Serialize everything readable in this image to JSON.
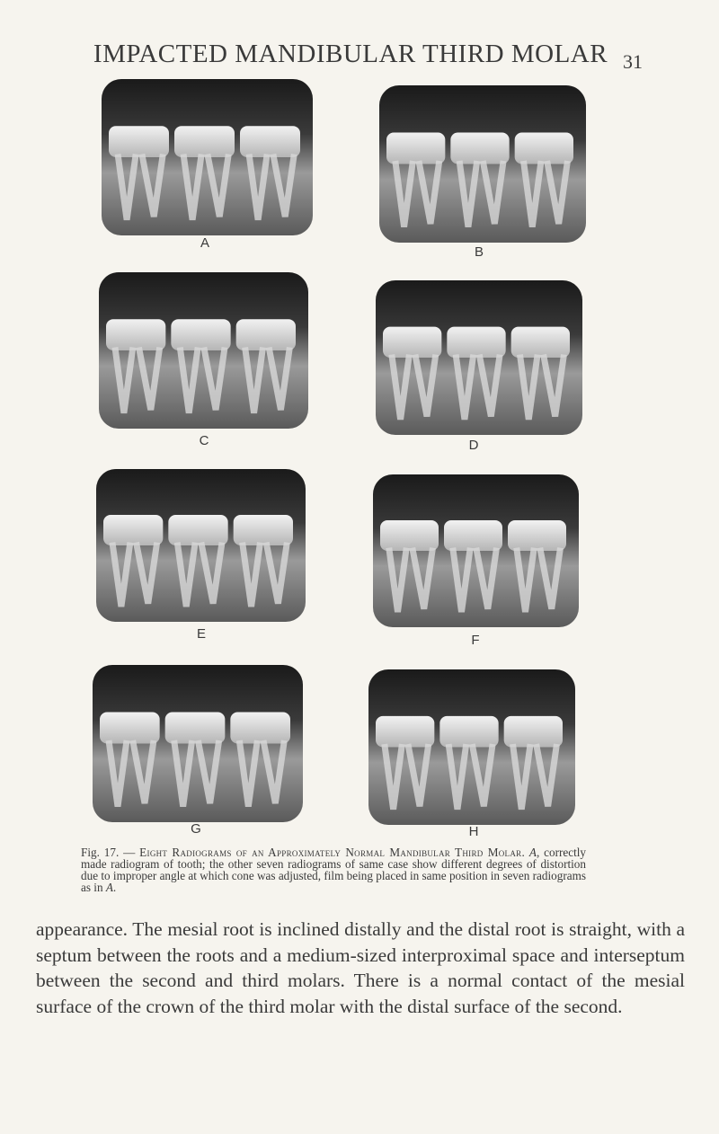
{
  "header": {
    "title": "IMPACTED MANDIBULAR THIRD MOLAR",
    "page_number": "31"
  },
  "figures": [
    {
      "label": "A"
    },
    {
      "label": "B"
    },
    {
      "label": "C"
    },
    {
      "label": "D"
    },
    {
      "label": "E"
    },
    {
      "label": "F"
    },
    {
      "label": "G"
    },
    {
      "label": "H"
    }
  ],
  "caption": {
    "number": "Fig. 17. —",
    "heading": "Eight Radiograms of an Approximately Normal Mandibular Third Molar.",
    "body": [
      "A",
      ", correctly made radiogram of tooth; the other seven radiograms of same case show different degrees of distortion due to improper angle at which cone was adjusted, film being placed in same position in seven radiograms as in ",
      "A",
      "."
    ]
  },
  "paragraph": "appearance. The mesial root is inclined distally and the distal root is straight, with a septum between the roots and a medium-sized interproximal space and interseptum between the second and third molars. There is a normal contact of the mesial surface of the crown of the third molar with the distal surface of the second."
}
